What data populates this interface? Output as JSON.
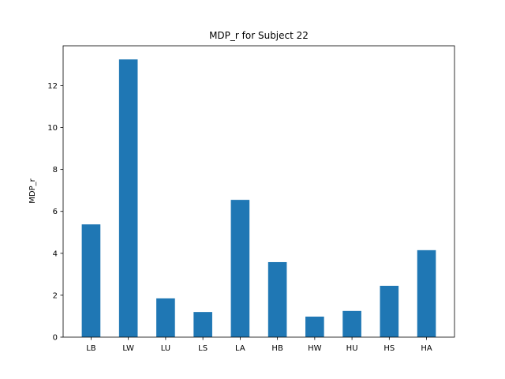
{
  "chart_data": {
    "type": "bar",
    "title": "MDP_r for Subject 22",
    "xlabel": "",
    "ylabel": "MDP_r",
    "categories": [
      "LB",
      "LW",
      "LU",
      "LS",
      "LA",
      "HB",
      "HW",
      "HU",
      "HS",
      "HA"
    ],
    "values": [
      5.38,
      13.25,
      1.85,
      1.2,
      6.55,
      3.58,
      0.98,
      1.25,
      2.45,
      4.15
    ],
    "ylim": [
      0,
      13.9
    ],
    "yticks": [
      0,
      2,
      4,
      6,
      8,
      10,
      12
    ],
    "ytick_labels": [
      "0",
      "2",
      "4",
      "6",
      "8",
      "10",
      "12"
    ],
    "bar_color": "#1f77b4",
    "grid": false,
    "legend": "none"
  }
}
